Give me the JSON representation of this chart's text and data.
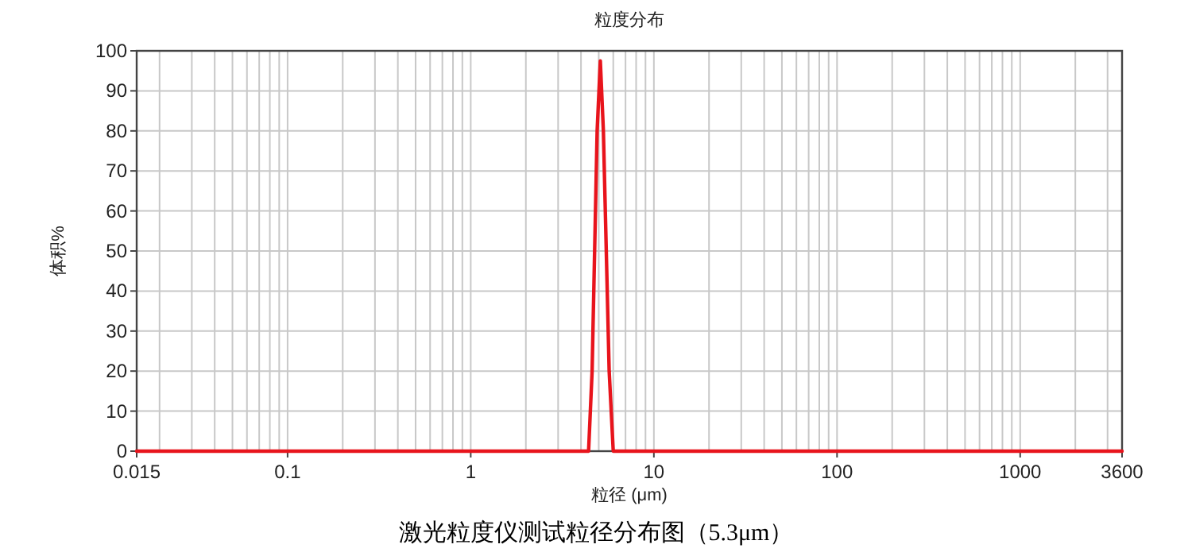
{
  "chart_data": {
    "type": "line",
    "title": "粒度分布",
    "xlabel": "粒径 (μm)",
    "ylabel": "体积%",
    "annotations": [
      "激光粒度仪测试粒径分布图（5.3μm）"
    ],
    "log": "x",
    "grid": true,
    "marker": "none",
    "line_style": "solid",
    "xlim": [
      0.015,
      3600
    ],
    "ylim": [
      0,
      100
    ],
    "xticks": [
      0.015,
      0.1,
      1,
      10,
      100,
      1000,
      3600
    ],
    "yticks": [
      0,
      10,
      20,
      30,
      40,
      50,
      60,
      70,
      80,
      90,
      100
    ],
    "series": [
      {
        "color": "#e8141c",
        "x": [
          0.015,
          4.4,
          4.6,
          4.9,
          5.1,
          5.3,
          5.7,
          6.0,
          3600
        ],
        "values": [
          0,
          0,
          20,
          80,
          97.5,
          80,
          20,
          0,
          0
        ]
      }
    ]
  }
}
